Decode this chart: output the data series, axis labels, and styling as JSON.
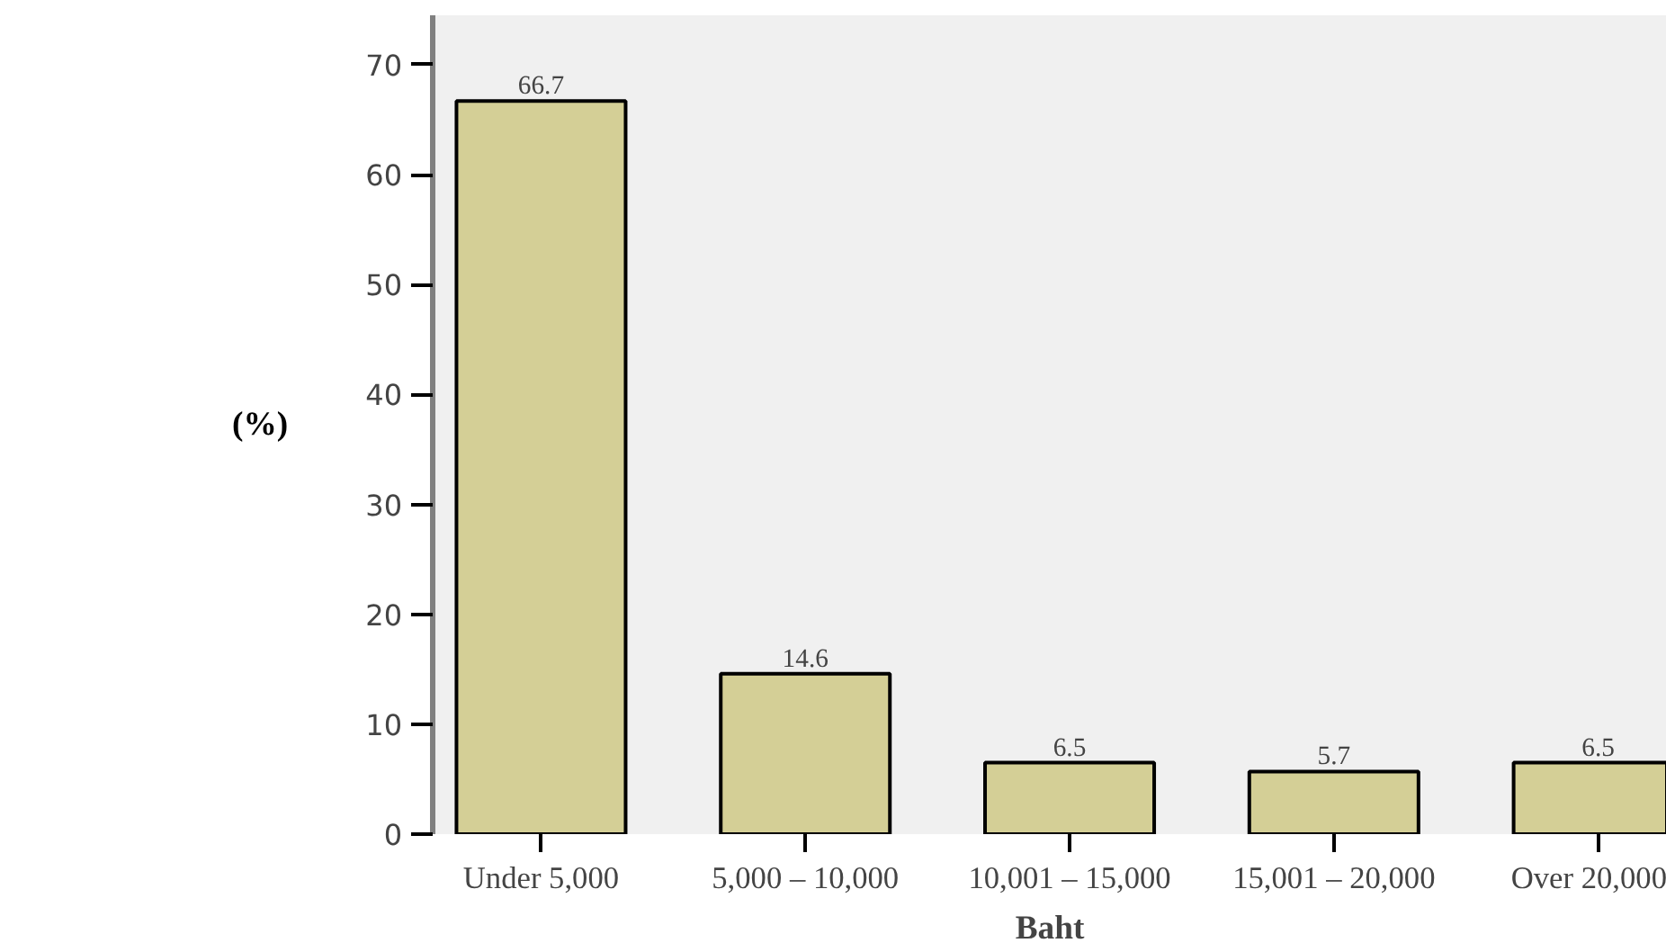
{
  "chart_data": {
    "type": "bar",
    "xlabel": "Baht",
    "ylabel": "(%)",
    "categories": [
      "Under 5,000",
      "5,000 – 10,000",
      "10,001 – 15,000",
      "15,001 – 20,000",
      "Over 20,000"
    ],
    "values": [
      66.7,
      14.6,
      6.5,
      5.7,
      6.5
    ],
    "color": "#d4cf96",
    "ylim": [
      0,
      74.5
    ],
    "yticks": [
      0,
      10,
      20,
      30,
      40,
      50,
      60,
      70
    ],
    "grid": false,
    "data_labels": true
  }
}
